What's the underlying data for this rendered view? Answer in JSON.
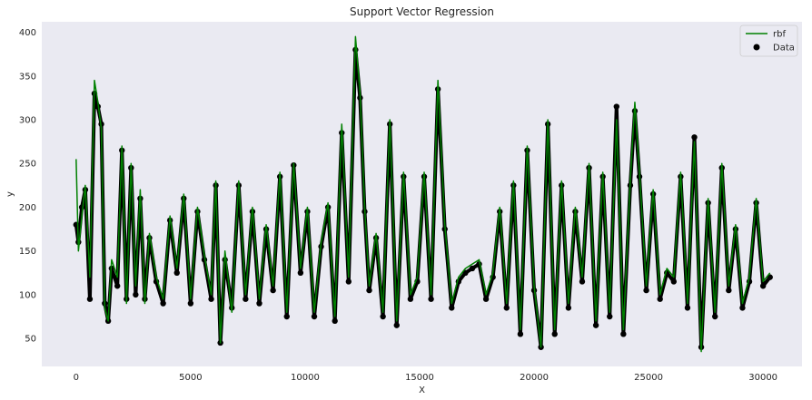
{
  "chart_data": {
    "type": "line",
    "title": "Support Vector Regression",
    "xlabel": "X",
    "ylabel": "y",
    "xlim": [
      -1500,
      31700
    ],
    "ylim": [
      18,
      412
    ],
    "xticks": [
      0,
      5000,
      10000,
      15000,
      20000,
      25000,
      30000
    ],
    "yticks": [
      50,
      100,
      150,
      200,
      250,
      300,
      350,
      400
    ],
    "grid": false,
    "legend_position": "top-right",
    "background_color": "#eaeaf2",
    "series": [
      {
        "name": "rbf",
        "kind": "line",
        "color": "#008000",
        "x": [
          0,
          100,
          250,
          400,
          600,
          800,
          950,
          1100,
          1250,
          1400,
          1550,
          1800,
          2000,
          2200,
          2400,
          2600,
          2800,
          3000,
          3200,
          3500,
          3800,
          4100,
          4400,
          4700,
          5000,
          5300,
          5600,
          5900,
          6100,
          6300,
          6500,
          6800,
          7100,
          7400,
          7700,
          8000,
          8300,
          8600,
          8900,
          9200,
          9500,
          9800,
          10100,
          10400,
          10700,
          11000,
          11300,
          11600,
          11900,
          12200,
          12400,
          12600,
          12800,
          13100,
          13400,
          13700,
          14000,
          14300,
          14600,
          14900,
          15200,
          15500,
          15800,
          16100,
          16400,
          16700,
          17000,
          17300,
          17600,
          17900,
          18200,
          18500,
          18800,
          19100,
          19400,
          19700,
          20000,
          20300,
          20600,
          20900,
          21200,
          21500,
          21800,
          22100,
          22400,
          22700,
          23000,
          23300,
          23600,
          23900,
          24200,
          24400,
          24600,
          24900,
          25200,
          25500,
          25800,
          26100,
          26400,
          26700,
          27000,
          27300,
          27600,
          27900,
          28200,
          28500,
          28800,
          29100,
          29400,
          29700,
          30000,
          30300
        ],
        "values": [
          255,
          150,
          190,
          225,
          120,
          345,
          320,
          290,
          85,
          70,
          140,
          120,
          270,
          90,
          250,
          110,
          220,
          90,
          170,
          120,
          95,
          190,
          130,
          215,
          95,
          200,
          145,
          100,
          230,
          45,
          150,
          80,
          230,
          100,
          200,
          95,
          180,
          110,
          240,
          80,
          250,
          130,
          200,
          80,
          160,
          205,
          75,
          295,
          120,
          395,
          330,
          200,
          110,
          170,
          80,
          300,
          70,
          240,
          100,
          120,
          240,
          100,
          345,
          180,
          90,
          120,
          130,
          135,
          140,
          100,
          125,
          200,
          90,
          230,
          60,
          270,
          110,
          40,
          300,
          60,
          230,
          90,
          200,
          120,
          250,
          70,
          240,
          80,
          300,
          60,
          230,
          320,
          240,
          110,
          220,
          100,
          130,
          120,
          240,
          90,
          275,
          35,
          210,
          80,
          250,
          110,
          180,
          90,
          120,
          210,
          115,
          125
        ]
      },
      {
        "name": "Data",
        "kind": "scatter",
        "color": "#000000",
        "x": [
          0,
          100,
          250,
          400,
          600,
          800,
          950,
          1100,
          1250,
          1400,
          1550,
          1800,
          2000,
          2200,
          2400,
          2600,
          2800,
          3000,
          3200,
          3500,
          3800,
          4100,
          4400,
          4700,
          5000,
          5300,
          5600,
          5900,
          6100,
          6300,
          6500,
          6800,
          7100,
          7400,
          7700,
          8000,
          8300,
          8600,
          8900,
          9200,
          9500,
          9800,
          10100,
          10400,
          10700,
          11000,
          11300,
          11600,
          11900,
          12200,
          12400,
          12600,
          12800,
          13100,
          13400,
          13700,
          14000,
          14300,
          14600,
          14900,
          15200,
          15500,
          15800,
          16100,
          16400,
          16700,
          17000,
          17300,
          17600,
          17900,
          18200,
          18500,
          18800,
          19100,
          19400,
          19700,
          20000,
          20300,
          20600,
          20900,
          21200,
          21500,
          21800,
          22100,
          22400,
          22700,
          23000,
          23300,
          23600,
          23900,
          24200,
          24400,
          24600,
          24900,
          25200,
          25500,
          25800,
          26100,
          26400,
          26700,
          27000,
          27300,
          27600,
          27900,
          28200,
          28500,
          28800,
          29100,
          29400,
          29700,
          30000,
          30300
        ],
        "values": [
          180,
          160,
          200,
          220,
          95,
          330,
          315,
          295,
          90,
          70,
          130,
          110,
          265,
          95,
          245,
          100,
          210,
          95,
          165,
          115,
          90,
          185,
          125,
          210,
          90,
          195,
          140,
          95,
          225,
          45,
          140,
          85,
          225,
          95,
          195,
          90,
          175,
          105,
          235,
          75,
          248,
          125,
          195,
          75,
          155,
          200,
          70,
          285,
          115,
          380,
          325,
          195,
          105,
          165,
          75,
          295,
          65,
          235,
          95,
          115,
          235,
          95,
          335,
          175,
          85,
          115,
          125,
          130,
          135,
          95,
          120,
          195,
          85,
          225,
          55,
          265,
          105,
          40,
          295,
          55,
          225,
          85,
          195,
          115,
          245,
          65,
          235,
          75,
          315,
          55,
          225,
          310,
          235,
          105,
          215,
          95,
          125,
          115,
          235,
          85,
          280,
          40,
          205,
          75,
          245,
          105,
          175,
          85,
          115,
          205,
          110,
          120
        ]
      }
    ]
  }
}
